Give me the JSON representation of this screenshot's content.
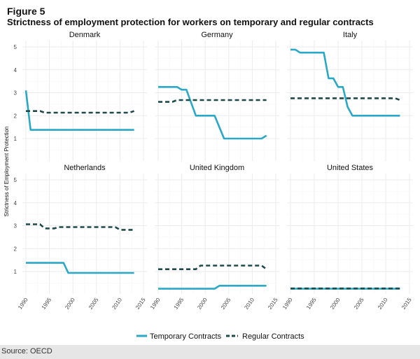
{
  "figure_label": "Figure 5",
  "title": "Strictness of employment protection for workers on temporary and regular contracts",
  "source": "Source: OECD",
  "chart_data": {
    "type": "line",
    "title": "Strictness of employment protection for workers on temporary and regular contracts",
    "ylabel": "Strictness of Employment Protection",
    "xlabel": "",
    "ylim": [
      0,
      5
    ],
    "yticks": [
      "1",
      "2",
      "3",
      "4",
      "5"
    ],
    "xlim": [
      1990,
      2015
    ],
    "xticks": [
      "1990",
      "1995",
      "2000",
      "2005",
      "2010",
      "2015"
    ],
    "grid": true,
    "legend": {
      "position": "bottom",
      "entries": [
        {
          "label": "Temporary Contracts",
          "style": "solid",
          "color": "#2aa8c8"
        },
        {
          "label": "Regular Contracts",
          "style": "dashed",
          "color": "#1e4a4a"
        }
      ]
    },
    "panels": [
      {
        "name": "Denmark",
        "temporary": {
          "x": [
            1990,
            1991,
            2013
          ],
          "y": [
            3.1,
            1.38,
            1.38
          ]
        },
        "regular": {
          "x": [
            1990,
            1993,
            1994,
            2012,
            2013
          ],
          "y": [
            2.2,
            2.2,
            2.13,
            2.13,
            2.2
          ]
        }
      },
      {
        "name": "Germany",
        "temporary": {
          "x": [
            1990,
            1994,
            1995,
            1996,
            1998,
            2002,
            2004,
            2012,
            2013
          ],
          "y": [
            3.25,
            3.25,
            3.13,
            3.13,
            2.0,
            2.0,
            1.0,
            1.0,
            1.13
          ]
        },
        "regular": {
          "x": [
            1990,
            1993,
            1994,
            2013
          ],
          "y": [
            2.6,
            2.6,
            2.68,
            2.68
          ]
        }
      },
      {
        "name": "Italy",
        "temporary": {
          "x": [
            1990,
            1991,
            1992,
            1997,
            1998,
            1999,
            2000,
            2001,
            2002,
            2003,
            2013
          ],
          "y": [
            4.88,
            4.88,
            4.75,
            4.75,
            3.63,
            3.63,
            3.25,
            3.25,
            2.38,
            2.0,
            2.0
          ]
        },
        "regular": {
          "x": [
            1990,
            2012,
            2013
          ],
          "y": [
            2.76,
            2.76,
            2.68
          ]
        }
      },
      {
        "name": "Netherlands",
        "temporary": {
          "x": [
            1990,
            1998,
            1999,
            2013
          ],
          "y": [
            1.38,
            1.38,
            0.94,
            0.94
          ]
        },
        "regular": {
          "x": [
            1990,
            1993,
            1994,
            1996,
            1997,
            2009,
            2010,
            2013
          ],
          "y": [
            3.06,
            3.06,
            2.88,
            2.88,
            2.94,
            2.94,
            2.82,
            2.82
          ]
        }
      },
      {
        "name": "United Kingdom",
        "temporary": {
          "x": [
            1990,
            2002,
            2003,
            2013
          ],
          "y": [
            0.25,
            0.25,
            0.38,
            0.38
          ]
        },
        "regular": {
          "x": [
            1990,
            1998,
            1999,
            2012,
            2013
          ],
          "y": [
            1.1,
            1.1,
            1.26,
            1.26,
            1.1
          ]
        }
      },
      {
        "name": "United States",
        "temporary": {
          "x": [
            1990,
            2013
          ],
          "y": [
            0.25,
            0.25
          ]
        },
        "regular": {
          "x": [
            1990,
            2013
          ],
          "y": [
            0.26,
            0.26
          ]
        }
      }
    ]
  }
}
